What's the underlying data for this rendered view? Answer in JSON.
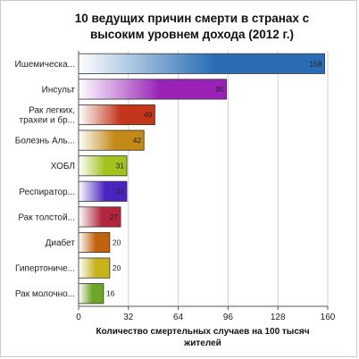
{
  "chart_data": {
    "type": "bar",
    "orientation": "horizontal",
    "title_lines": [
      "10 ведущих причин смерти в странах с",
      "высоким уровнем дохода (2012 г.)"
    ],
    "xlabel_lines": [
      "Количество смертельных случаев на 100 тысяч",
      "жителей"
    ],
    "ylabel": "",
    "xlim": [
      0,
      160
    ],
    "xticks": [
      "0",
      "32",
      "64",
      "96",
      "128",
      "160"
    ],
    "grid": true,
    "categories": [
      [
        "Ишемическа..."
      ],
      [
        "Инсульт"
      ],
      [
        "Рак легких,",
        "трахеи и бр..."
      ],
      [
        "Болезнь Аль..."
      ],
      [
        "ХОБЛ"
      ],
      [
        "Респиратор..."
      ],
      [
        "Рак толстой..."
      ],
      [
        "Диабет"
      ],
      [
        "Гипертониче..."
      ],
      [
        "Рак молочно..."
      ]
    ],
    "values": [
      158,
      95,
      49,
      42,
      31,
      31,
      27,
      20,
      20,
      16
    ],
    "value_labels": [
      "158",
      "95",
      "49",
      "42",
      "31",
      "31",
      "27",
      "20",
      "20",
      "16"
    ],
    "colors": [
      "#2a6db5",
      "#9a22b8",
      "#c4361c",
      "#c48a18",
      "#a2c21c",
      "#4a23c0",
      "#b3253f",
      "#c2620f",
      "#c7b41c",
      "#6ea626"
    ]
  }
}
